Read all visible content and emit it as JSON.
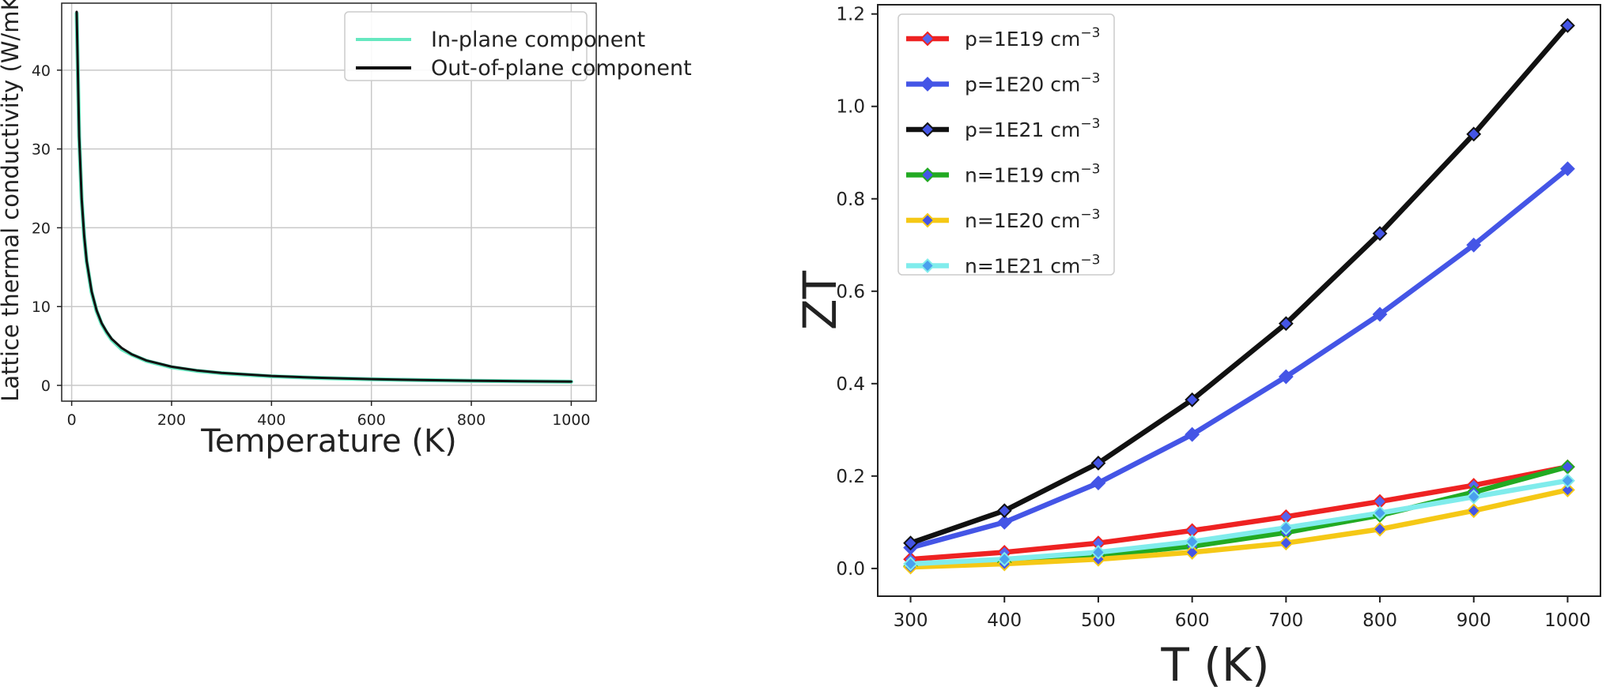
{
  "chart_data": [
    {
      "type": "line",
      "title": "",
      "xlabel": "Temperature (K)",
      "ylabel": "Lattice thermal conductivity (W/mK)",
      "xlim": [
        -20,
        1050
      ],
      "ylim": [
        -2,
        48.5
      ],
      "xticks": [
        0,
        200,
        400,
        600,
        800,
        1000
      ],
      "yticks": [
        0,
        10,
        20,
        30,
        40
      ],
      "grid": true,
      "legend": "top-right",
      "series": [
        {
          "name": "In-plane component",
          "color": "#66e8c0",
          "x": [
            10,
            15,
            20,
            25,
            30,
            40,
            50,
            60,
            70,
            80,
            100,
            120,
            150,
            200,
            250,
            300,
            400,
            500,
            600,
            700,
            800,
            900,
            1000
          ],
          "y": [
            47.2,
            31.5,
            23.6,
            18.9,
            15.7,
            11.8,
            9.4,
            7.8,
            6.7,
            5.8,
            4.6,
            3.9,
            3.1,
            2.3,
            1.85,
            1.55,
            1.15,
            0.93,
            0.78,
            0.67,
            0.58,
            0.52,
            0.47
          ]
        },
        {
          "name": "Out-of-plane component",
          "color": "#111111",
          "x": [
            10,
            15,
            20,
            25,
            30,
            40,
            50,
            60,
            70,
            80,
            100,
            120,
            150,
            200,
            250,
            300,
            400,
            500,
            600,
            700,
            800,
            900,
            1000
          ],
          "y": [
            47.4,
            31.6,
            23.7,
            19.0,
            15.8,
            11.9,
            9.5,
            7.9,
            6.8,
            5.9,
            4.75,
            3.95,
            3.15,
            2.37,
            1.9,
            1.58,
            1.19,
            0.95,
            0.79,
            0.68,
            0.59,
            0.53,
            0.48
          ]
        }
      ]
    },
    {
      "type": "line",
      "title": "",
      "xlabel": "T (K)",
      "ylabel": "ZT",
      "xlim": [
        265,
        1035
      ],
      "ylim": [
        -0.06,
        1.22
      ],
      "xticks": [
        300,
        400,
        500,
        600,
        700,
        800,
        900,
        1000
      ],
      "yticks": [
        0.0,
        0.2,
        0.4,
        0.6,
        0.8,
        1.0,
        1.2
      ],
      "ytick_labels": [
        "0.0",
        "0.2",
        "0.4",
        "0.6",
        "0.8",
        "1.0",
        "1.2"
      ],
      "grid": false,
      "legend": "top-left",
      "x": [
        300,
        400,
        500,
        600,
        700,
        800,
        900,
        1000
      ],
      "series": [
        {
          "name": "p=1E19 cm",
          "sup": "−3",
          "color": "#ee2222",
          "marker": "#5566ee",
          "values": [
            0.02,
            0.035,
            0.055,
            0.082,
            0.112,
            0.145,
            0.18,
            0.22
          ]
        },
        {
          "name": "p=1E20 cm",
          "sup": "−3",
          "color": "#4455e6",
          "marker": "#4455e6",
          "values": [
            0.045,
            0.1,
            0.185,
            0.29,
            0.415,
            0.55,
            0.7,
            0.865
          ]
        },
        {
          "name": "p=1E21 cm",
          "sup": "−3",
          "color": "#111111",
          "marker": "#4455e6",
          "values": [
            0.055,
            0.125,
            0.228,
            0.365,
            0.53,
            0.725,
            0.94,
            1.175
          ]
        },
        {
          "name": "n=1E19 cm",
          "sup": "−3",
          "color": "#22aa22",
          "marker": "#4455e6",
          "values": [
            0.005,
            0.013,
            0.028,
            0.048,
            0.078,
            0.115,
            0.165,
            0.22
          ]
        },
        {
          "name": "n=1E20 cm",
          "sup": "−3",
          "color": "#f5c816",
          "marker": "#4455e6",
          "values": [
            0.003,
            0.01,
            0.02,
            0.035,
            0.055,
            0.085,
            0.125,
            0.17
          ]
        },
        {
          "name": "n=1E21 cm",
          "sup": "−3",
          "color": "#80ecec",
          "marker": "#4aa0ee",
          "values": [
            0.01,
            0.02,
            0.035,
            0.058,
            0.088,
            0.12,
            0.155,
            0.19
          ]
        }
      ]
    }
  ]
}
